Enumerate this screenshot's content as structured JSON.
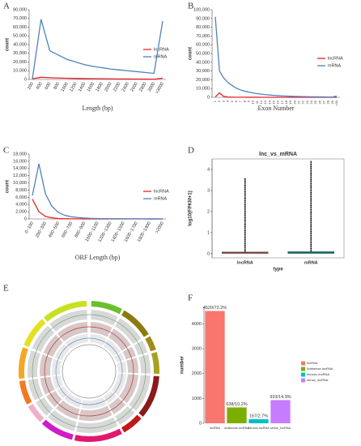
{
  "chart_data": [
    {
      "panel": "A",
      "type": "line",
      "xlabel": "Length (bp)",
      "ylabel": "count",
      "categories": [
        "200",
        "400",
        "600",
        "800",
        "1000",
        "1200",
        "1400",
        "1600",
        "1800",
        "2000",
        "2200",
        "2400",
        "2600",
        "2800",
        "3000",
        ">3000"
      ],
      "series": [
        {
          "name": "lncRNA",
          "color": "#e8202a",
          "values": [
            800,
            2500,
            2000,
            1600,
            1400,
            1200,
            1000,
            900,
            800,
            700,
            600,
            500,
            450,
            400,
            350,
            1500
          ]
        },
        {
          "name": "mRNA",
          "color": "#4f81bd",
          "values": [
            500,
            69000,
            33000,
            28000,
            23000,
            20000,
            17000,
            15000,
            13500,
            12000,
            11000,
            10000,
            9000,
            8000,
            7000,
            67000
          ]
        }
      ],
      "ylim": [
        0,
        80000
      ],
      "yticks": [
        0,
        {
          "value": 10000,
          "label": "10,000"
        },
        {
          "value": 20000,
          "label": "20,000"
        },
        {
          "value": 30000,
          "label": "30,000"
        },
        {
          "value": 40000,
          "label": "40,000"
        },
        {
          "value": 50000,
          "label": "50,000"
        },
        {
          "value": 60000,
          "label": "60,000"
        },
        {
          "value": 70000,
          "label": "70,000"
        },
        {
          "value": 80000,
          "label": "80,000"
        }
      ]
    },
    {
      "panel": "B",
      "type": "line",
      "xlabel": "Exon Number",
      "ylabel": "count",
      "categories": [
        "1",
        "2",
        "3",
        "4",
        "5",
        "6",
        "7",
        "8",
        "9",
        "10",
        "11",
        "12",
        "13",
        "14",
        "15",
        "16",
        "17",
        "18",
        "19",
        "20",
        "21",
        "22",
        "23",
        "24",
        "25",
        "26",
        "27",
        "28",
        "29",
        ">30"
      ],
      "series": [
        {
          "name": "lncRNA",
          "color": "#e8202a",
          "values": [
            500,
            5000,
            1000,
            300,
            200,
            150,
            100,
            80,
            60,
            50,
            40,
            30,
            30,
            20,
            20,
            20,
            10,
            10,
            10,
            10,
            10,
            10,
            10,
            10,
            10,
            10,
            10,
            10,
            10,
            10
          ]
        },
        {
          "name": "mRNA",
          "color": "#4f81bd",
          "values": [
            92000,
            30000,
            22000,
            17000,
            13500,
            10500,
            8500,
            7000,
            6000,
            5000,
            4200,
            3600,
            3000,
            2600,
            2200,
            1900,
            1600,
            1400,
            1200,
            1000,
            900,
            800,
            700,
            600,
            500,
            450,
            400,
            350,
            300,
            1500
          ]
        }
      ],
      "ylim": [
        0,
        100000
      ],
      "yticks": [
        0,
        {
          "value": 10000,
          "label": "10,000"
        },
        {
          "value": 20000,
          "label": "20,000"
        },
        {
          "value": 30000,
          "label": "30,000"
        },
        {
          "value": 40000,
          "label": "40,000"
        },
        {
          "value": 50000,
          "label": "50,000"
        },
        {
          "value": 60000,
          "label": "60,000"
        },
        {
          "value": 70000,
          "label": "70,000"
        },
        {
          "value": 80000,
          "label": "80,000"
        },
        {
          "value": 90000,
          "label": "90,000"
        },
        {
          "value": 100000,
          "label": "100,000"
        }
      ]
    },
    {
      "panel": "C",
      "type": "line",
      "xlabel": "ORF Length (bp)",
      "ylabel": "count",
      "categories": [
        "0~100",
        null,
        "200~300",
        null,
        "400~500",
        null,
        "600~700",
        null,
        "800~900",
        null,
        "1000~1100",
        null,
        "1200~1300",
        null,
        "1400~1500",
        null,
        "1600~1700",
        null,
        "1800~1900",
        null,
        ">2000"
      ],
      "series": [
        {
          "name": "lncRNA",
          "color": "#e8202a",
          "values": [
            5500,
            2000,
            700,
            300,
            100,
            50,
            30,
            20,
            10,
            10,
            5,
            5,
            0,
            0,
            0,
            0,
            0,
            0,
            0,
            0,
            0
          ]
        },
        {
          "name": "mRNA",
          "color": "#4f81bd",
          "values": [
            6500,
            15300,
            7000,
            3500,
            1800,
            1000,
            600,
            400,
            250,
            150,
            100,
            80,
            60,
            50,
            40,
            30,
            25,
            20,
            15,
            10,
            10
          ]
        }
      ],
      "ylim": [
        0,
        18000
      ],
      "yticks": [
        0,
        {
          "value": 2000,
          "label": "2,000"
        },
        {
          "value": 4000,
          "label": "4,000"
        },
        {
          "value": 6000,
          "label": "6,000"
        },
        {
          "value": 8000,
          "label": "8,000"
        },
        {
          "value": 10000,
          "label": "10,000"
        },
        {
          "value": 12000,
          "label": "12,000"
        },
        {
          "value": 14000,
          "label": "14,000"
        },
        {
          "value": 16000,
          "label": "16,000"
        },
        {
          "value": 18000,
          "label": "18,000"
        }
      ]
    },
    {
      "panel": "D",
      "type": "box",
      "title": "lnc_vs_mRNA",
      "xlabel": "type",
      "ylabel": "log10(FPKM+1)",
      "categories": [
        "lncRNA",
        "mRNA"
      ],
      "colors": [
        "#d9534f",
        "#1a9fa0"
      ],
      "boxes": [
        {
          "q1": 0.01,
          "median": 0.04,
          "q3": 0.08,
          "max": 3.6
        },
        {
          "q1": 0.01,
          "median": 0.05,
          "q3": 0.1,
          "max": 4.4
        }
      ],
      "ylim": [
        -0.2,
        4.5
      ],
      "yticks": [
        0,
        1,
        2,
        3,
        4
      ]
    },
    {
      "panel": "E",
      "type": "circos"
    },
    {
      "panel": "F",
      "type": "bar",
      "ylabel": "number",
      "categories": [
        "lncRNA",
        "Antisense-lncRNA",
        "Intronic-lncRNA",
        "sense_lncRNA"
      ],
      "values": [
        4520,
        638,
        167,
        933
      ],
      "value_labels": [
        "4520/72.2%",
        "638/10.2%",
        "167/2.7%",
        "933/14.9%"
      ],
      "colors": [
        "#f8766d",
        "#7cae00",
        "#00bfc4",
        "#c77cff"
      ],
      "ylim": [
        0,
        4700
      ],
      "yticks": [
        0,
        1000,
        2000,
        3000,
        4000
      ]
    }
  ]
}
